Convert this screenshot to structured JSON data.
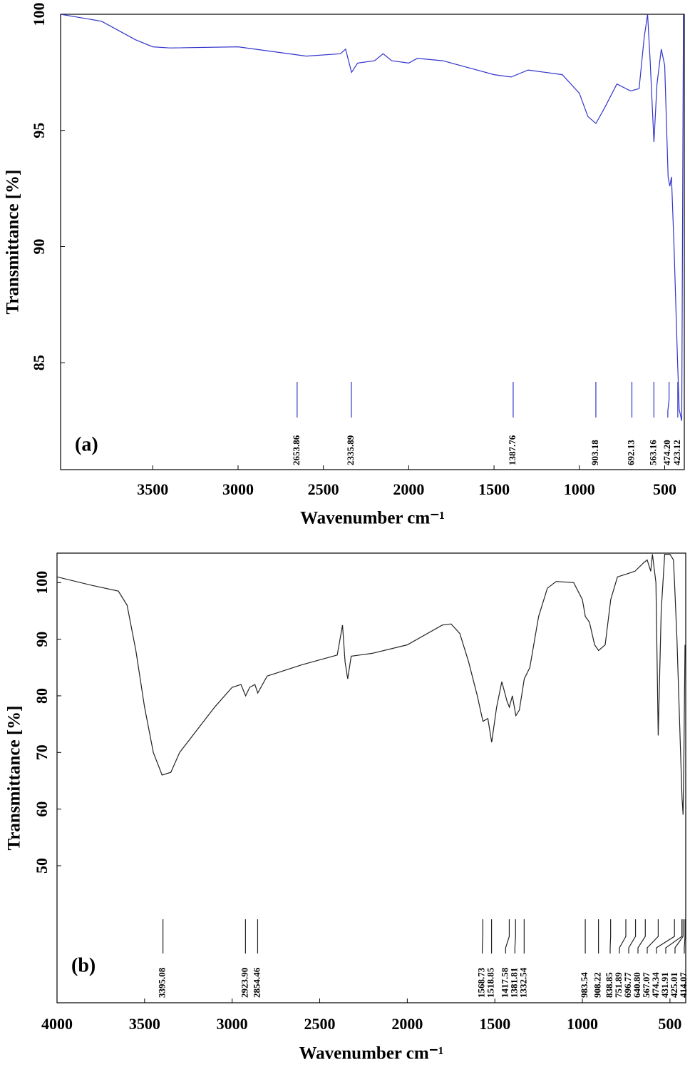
{
  "chart_data": [
    {
      "type": "line",
      "panel_label": "(a)",
      "x_label": "Wavenumber cm⁻¹",
      "y_label": "Transmittance [%]",
      "color": "#3333cc",
      "xlim": [
        4040,
        385
      ],
      "xticks": [
        3500,
        3000,
        2500,
        2000,
        1500,
        1000,
        500
      ],
      "ylim": [
        80.4,
        100
      ],
      "yticks": [
        85,
        90,
        95,
        100
      ],
      "x": [
        4040,
        3800,
        3700,
        3600,
        3500,
        3400,
        3000,
        2800,
        2600,
        2400,
        2370,
        2335,
        2300,
        2200,
        2150,
        2100,
        2000,
        1950,
        1800,
        1600,
        1500,
        1400,
        1300,
        1100,
        1000,
        950,
        903,
        850,
        780,
        700,
        650,
        620,
        600,
        585,
        563,
        545,
        520,
        500,
        480,
        470,
        460,
        445,
        425,
        415,
        400,
        390
      ],
      "values": [
        100,
        99.7,
        99.3,
        98.9,
        98.6,
        98.55,
        98.6,
        98.4,
        98.2,
        98.3,
        98.5,
        97.5,
        97.9,
        98.0,
        98.3,
        98.0,
        97.9,
        98.1,
        98.0,
        97.6,
        97.4,
        97.3,
        97.6,
        97.4,
        96.6,
        95.6,
        95.3,
        96.0,
        97.0,
        96.7,
        96.8,
        99.0,
        100,
        98.0,
        94.5,
        97.0,
        98.5,
        97.8,
        93.0,
        92.6,
        93.0,
        90.0,
        85.2,
        83,
        82.5,
        100
      ],
      "peaks": [
        2653.86,
        2335.89,
        1387.76,
        903.18,
        692.13,
        563.16,
        {
          "value": 474.2,
          "label": "474.20"
        },
        423.12
      ]
    },
    {
      "type": "line",
      "panel_label": "(b)",
      "x_label": "Wavenumber cm⁻¹",
      "y_label": "Transmittance [%]",
      "color": "#222222",
      "xlim": [
        4000,
        410
      ],
      "xticks": [
        4000,
        3500,
        3000,
        2500,
        2000,
        1500,
        1000,
        500
      ],
      "ylim": [
        25.8,
        105.2
      ],
      "yticks": [
        50,
        60,
        70,
        80,
        90,
        100
      ],
      "x": [
        4000,
        3800,
        3650,
        3600,
        3550,
        3500,
        3450,
        3400,
        3350,
        3300,
        3200,
        3100,
        3000,
        2950,
        2923,
        2900,
        2870,
        2854,
        2800,
        2600,
        2400,
        2370,
        2355,
        2340,
        2320,
        2200,
        2000,
        1800,
        1750,
        1700,
        1650,
        1600,
        1568,
        1540,
        1518,
        1490,
        1460,
        1430,
        1417,
        1400,
        1380,
        1360,
        1332,
        1300,
        1250,
        1200,
        1150,
        1050,
        1000,
        983,
        960,
        930,
        908,
        870,
        838,
        800,
        750,
        700,
        650,
        630,
        610,
        600,
        580,
        567,
        550,
        530,
        500,
        480,
        474,
        460,
        431,
        425,
        420,
        414
      ],
      "values": [
        101,
        99.5,
        98.5,
        96,
        88,
        78,
        70,
        66,
        66.5,
        70,
        74,
        78,
        81.5,
        82,
        80,
        81.5,
        82,
        80.5,
        83.5,
        85.5,
        87.2,
        92.5,
        86,
        83,
        87,
        87.5,
        89,
        92.5,
        92.7,
        91,
        86,
        80,
        75.5,
        76,
        71.8,
        78,
        82.5,
        79,
        78,
        80,
        76.5,
        77.5,
        83,
        85,
        94,
        99,
        100.2,
        100,
        97,
        94,
        93,
        89,
        88,
        89,
        97,
        101,
        101.5,
        102,
        103.5,
        104,
        102,
        105,
        100,
        73,
        95,
        105,
        105,
        104,
        100,
        90,
        62,
        59,
        70,
        89
      ],
      "peaks": [
        {
          "value": 3395.08,
          "label": "3395.08"
        },
        {
          "value": 2923.9,
          "label": "2923.90"
        },
        2854.46,
        1568.73,
        1518.85,
        1417.58,
        1381.81,
        1332.54,
        983.54,
        908.22,
        838.85,
        751.89,
        696.77,
        {
          "value": 640.8,
          "label": "640.80"
        },
        567.07,
        474.34,
        431.91,
        425.01,
        414.07
      ]
    }
  ]
}
